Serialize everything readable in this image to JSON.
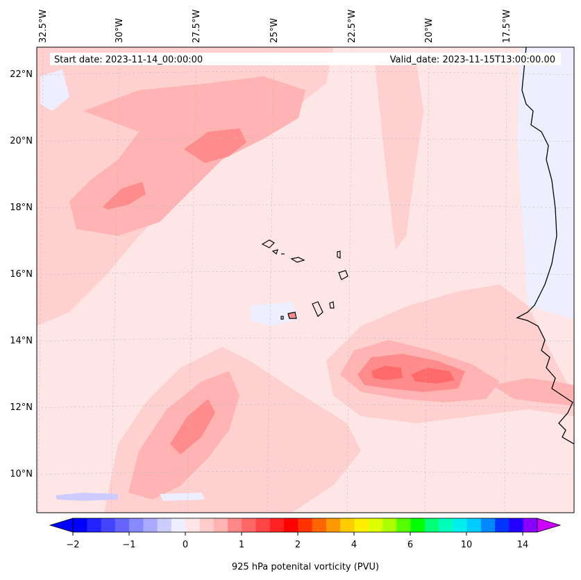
{
  "header": {
    "start_date": "Start date: 2023-11-14_00:00:00",
    "valid_date": "Valid_date: 2023-11-15T13:00:00.00"
  },
  "map": {
    "longitude_labels": [
      "32.5°W",
      "30°W",
      "27.5°W",
      "25°W",
      "22.5°W",
      "20°W",
      "17.5°W"
    ],
    "latitude_labels": [
      "22°N",
      "20°N",
      "18°N",
      "16°N",
      "14°N",
      "12°N",
      "10°N"
    ],
    "field_colors": {
      "background": "#ffe6e6",
      "weak_positive": "#ffd0d0",
      "moderate_positive": "#ffb3b3",
      "strong_positive": "#ff8c8c",
      "peak_positive": "#ff6b6b",
      "weak_negative": "#eeeeff",
      "moderate_negative": "#ccccff"
    }
  },
  "colorbar": {
    "label": "925 hPa potenital vorticity (PVU)",
    "tick_labels": [
      "−2",
      "−1",
      "0",
      "1",
      "2",
      "4",
      "6",
      "10",
      "14"
    ],
    "colors": [
      "#0000ff",
      "#2222ff",
      "#4444ff",
      "#6666ff",
      "#8888ff",
      "#aaaaff",
      "#ccccff",
      "#eeeeff",
      "#ffe6e6",
      "#ffcccc",
      "#ffb3b3",
      "#ff8888",
      "#ff6666",
      "#ff4444",
      "#ff2222",
      "#ff0000",
      "#ff3300",
      "#ff6600",
      "#ff9900",
      "#ffcc00",
      "#ffee00",
      "#ddff00",
      "#aaff00",
      "#55ff00",
      "#00ff00",
      "#00ff77",
      "#00ffbb",
      "#00eeee",
      "#00ccff",
      "#0088ff",
      "#0033ff",
      "#2200ff",
      "#8800ff"
    ],
    "extend_min_color": "#0000ff",
    "extend_max_color": "#cc00ff"
  }
}
